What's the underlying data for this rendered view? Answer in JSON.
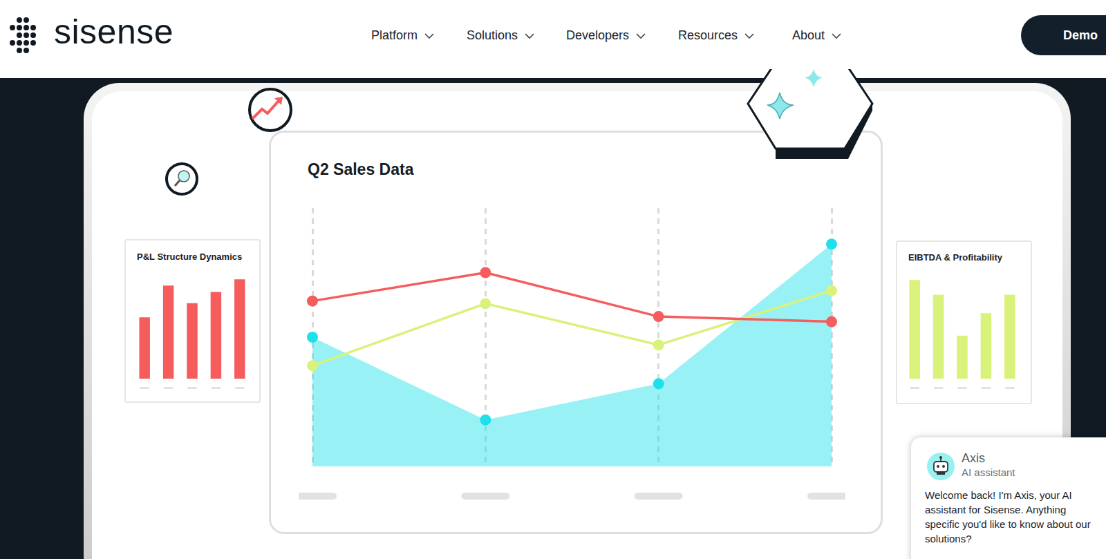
{
  "header": {
    "logo": "sisense",
    "nav": [
      "Platform",
      "Solutions",
      "Developers",
      "Resources",
      "About"
    ],
    "button": "Demo"
  },
  "chart_data": [
    {
      "type": "line",
      "title": "Q2 Sales Data",
      "categories": [
        null,
        null,
        null,
        null
      ],
      "series": [
        {
          "type": "area",
          "color": "#1ee0ea",
          "marker": "circle",
          "values": [
            50,
            18,
            32,
            86
          ]
        },
        {
          "type": "line",
          "color": "#f65c5c",
          "marker": "circle",
          "values": [
            64,
            75,
            58,
            56
          ]
        },
        {
          "type": "line",
          "color": "#d9f27a",
          "marker": "circle",
          "values": [
            39,
            63,
            47,
            68
          ]
        }
      ],
      "ylim": [
        0,
        100
      ],
      "grid": true,
      "tick_labels": false
    },
    {
      "type": "bar",
      "title": "P&L Structure Dynamics",
      "categories": [
        null,
        null,
        null,
        null,
        null
      ],
      "values": [
        87,
        132,
        107,
        123,
        141
      ],
      "color": "#f65c5c",
      "ylim": [
        0,
        150
      ],
      "grid": false,
      "tick_labels": false
    },
    {
      "type": "bar",
      "title": "EIBTDA & Profitability",
      "categories": [
        null,
        null,
        null,
        null,
        null
      ],
      "values": [
        140,
        119,
        61,
        93,
        119
      ],
      "color": "#d9f27a",
      "ylim": [
        0,
        150
      ],
      "grid": false,
      "tick_labels": false
    }
  ],
  "assistant": {
    "name": "Axis",
    "role": "AI assistant",
    "message": "Welcome back! I'm Axis, your AI assistant for Sisense. Anything specific you'd like to know about our solutions?"
  }
}
